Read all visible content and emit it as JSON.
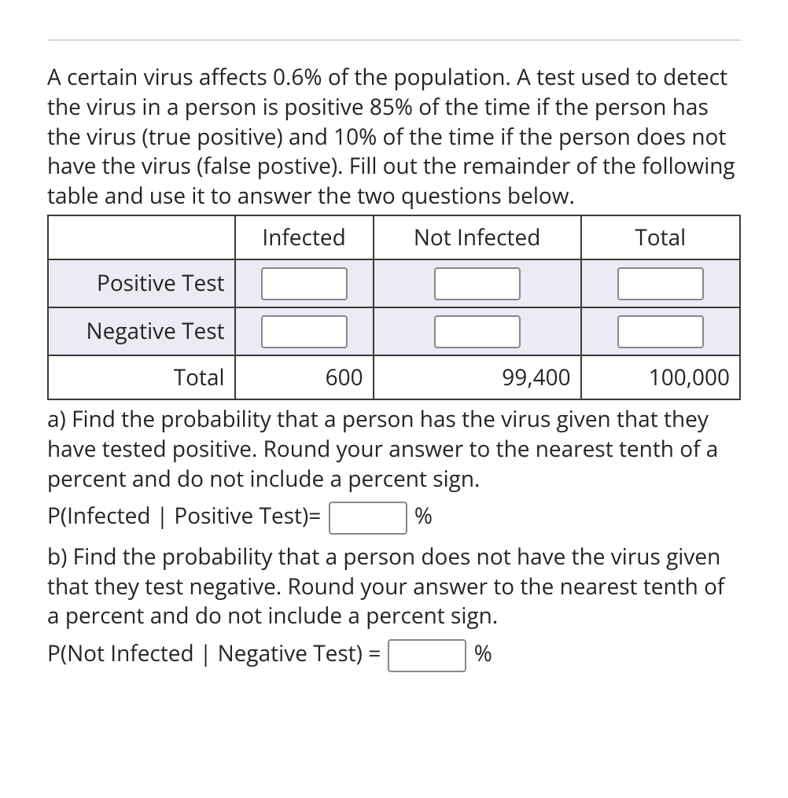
{
  "prompt": "A certain virus affects 0.6% of the population. A test used to detect the virus in a person is positive 85% of the time if the person has the virus (true positive) and 10% of the time if the person does not have the virus (false postive). Fill out the remainder of the following table and use it to answer the two questions below.",
  "table": {
    "columns": [
      "Infected",
      "Not Infected",
      "Total"
    ],
    "rows": [
      {
        "label": "Positive Test",
        "cells": [
          {
            "type": "input",
            "value": ""
          },
          {
            "type": "input",
            "value": ""
          },
          {
            "type": "input",
            "value": ""
          }
        ]
      },
      {
        "label": "Negative Test",
        "cells": [
          {
            "type": "input",
            "value": ""
          },
          {
            "type": "input",
            "value": ""
          },
          {
            "type": "input",
            "value": ""
          }
        ]
      },
      {
        "label": "Total",
        "cells": [
          {
            "type": "static",
            "value": "600"
          },
          {
            "type": "static",
            "value": "99,400"
          },
          {
            "type": "static",
            "value": "100,000"
          }
        ]
      }
    ]
  },
  "question_a": {
    "text": "a) Find the probability that a person has the virus given that they have tested positive. Round your answer to the nearest tenth of a percent and do not include a percent sign.",
    "eq_left": "P(Infected | Positive Test)=",
    "input_value": "",
    "unit": "%"
  },
  "question_b": {
    "text": "b) Find the probability that a person does not have the virus given that they test negative. Round your answer to the nearest tenth of a percent and do not include a percent sign.",
    "eq_left": "P(Not Infected | Negative Test) =",
    "input_value": "",
    "unit": "%"
  },
  "colors": {
    "input_row_bg": "#eceaf3",
    "border": "#3a3a3a",
    "text": "#212529",
    "rule": "#d8d8d8"
  }
}
